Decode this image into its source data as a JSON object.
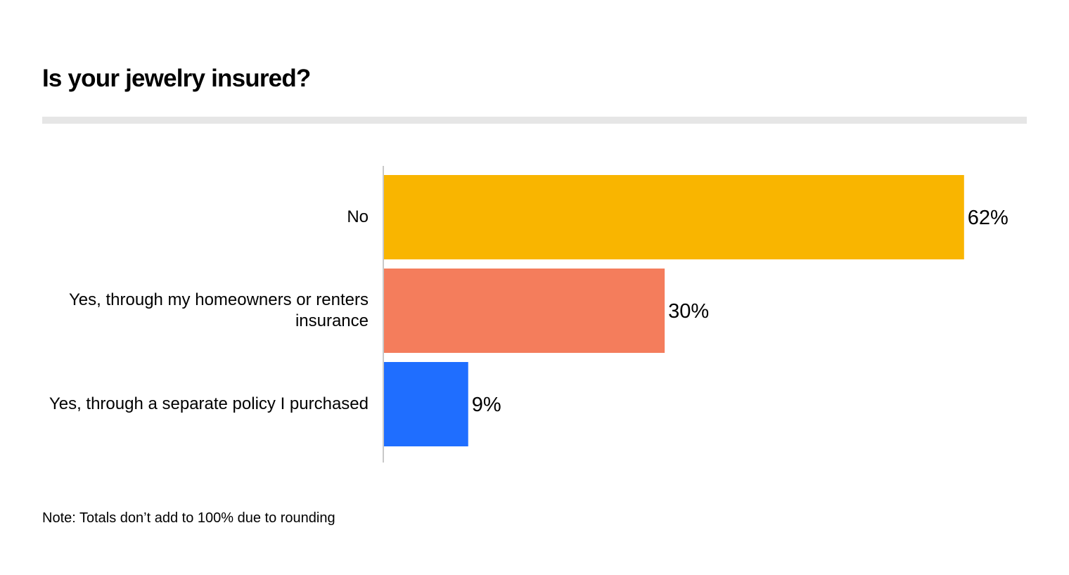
{
  "title": "Is your jewelry insured?",
  "note": "Note: Totals don’t add to 100% due to rounding",
  "chart_data": {
    "type": "bar",
    "orientation": "horizontal",
    "categories": [
      "No",
      "Yes, through my homeowners or renters insurance",
      "Yes, through a separate policy I purchased"
    ],
    "values": [
      62,
      30,
      9
    ],
    "value_labels": [
      "62%",
      "30%",
      "9%"
    ],
    "colors": [
      "#F9B500",
      "#F47D5C",
      "#1F6EFF"
    ],
    "xlim": [
      0,
      66
    ],
    "grid": false,
    "legend": "none"
  }
}
